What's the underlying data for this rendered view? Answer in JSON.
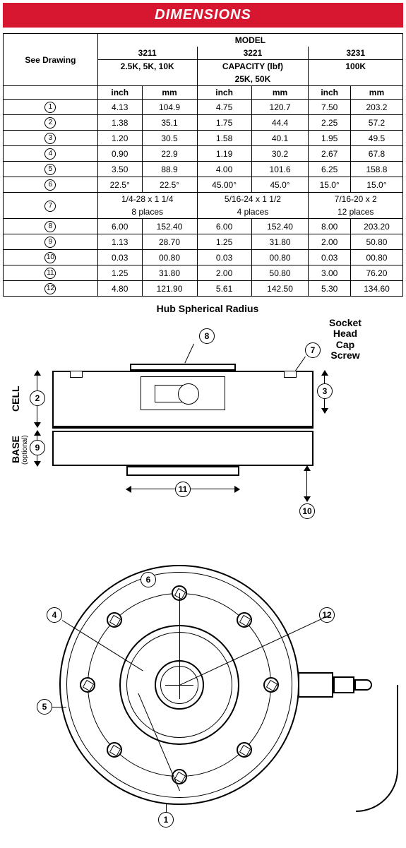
{
  "title": "DIMENSIONS",
  "colors": {
    "header_bg": "#d7172f",
    "header_fg": "#ffffff",
    "border": "#000000"
  },
  "headers": {
    "see_drawing": "See Drawing",
    "model": "MODEL",
    "models": [
      "3211",
      "3221",
      "3231"
    ],
    "capacity_label": "CAPACITY (lbf)",
    "capacities": [
      "2.5K, 5K, 10K",
      "25K, 50K",
      "100K"
    ],
    "unit_inch": "inch",
    "unit_mm": "mm"
  },
  "rows": [
    {
      "n": "1",
      "v": [
        "4.13",
        "104.9",
        "4.75",
        "120.7",
        "7.50",
        "203.2"
      ]
    },
    {
      "n": "2",
      "v": [
        "1.38",
        "35.1",
        "1.75",
        "44.4",
        "2.25",
        "57.2"
      ]
    },
    {
      "n": "3",
      "v": [
        "1.20",
        "30.5",
        "1.58",
        "40.1",
        "1.95",
        "49.5"
      ]
    },
    {
      "n": "4",
      "v": [
        "0.90",
        "22.9",
        "1.19",
        "30.2",
        "2.67",
        "67.8"
      ]
    },
    {
      "n": "5",
      "v": [
        "3.50",
        "88.9",
        "4.00",
        "101.6",
        "6.25",
        "158.8"
      ]
    },
    {
      "n": "6",
      "v": [
        "22.5°",
        "22.5°",
        "45.00°",
        "45.0°",
        "15.0°",
        "15.0°"
      ]
    }
  ],
  "row7": {
    "n": "7",
    "top": [
      "1/4-28 x 1 1/4",
      "5/16-24 x 1 1/2",
      "7/16-20 x 2"
    ],
    "bot": [
      "8 places",
      "4 places",
      "12 places"
    ]
  },
  "rows2": [
    {
      "n": "8",
      "v": [
        "6.00",
        "152.40",
        "6.00",
        "152.40",
        "8.00",
        "203.20"
      ]
    },
    {
      "n": "9",
      "v": [
        "1.13",
        "28.70",
        "1.25",
        "31.80",
        "2.00",
        "50.80"
      ]
    },
    {
      "n": "10",
      "v": [
        "0.03",
        "00.80",
        "0.03",
        "00.80",
        "0.03",
        "00.80"
      ]
    },
    {
      "n": "11",
      "v": [
        "1.25",
        "31.80",
        "2.00",
        "50.80",
        "3.00",
        "76.20"
      ]
    },
    {
      "n": "12",
      "v": [
        "4.80",
        "121.90",
        "5.61",
        "142.50",
        "5.30",
        "134.60"
      ]
    }
  ],
  "diagram": {
    "hub_label": "Hub Spherical Radius",
    "socket_label_l1": "Socket",
    "socket_label_l2": "Head",
    "socket_label_l3": "Cap",
    "socket_label_l4": "Screw",
    "cell_label": "CELL",
    "base_label": "BASE",
    "optional_label": "(optional)",
    "callouts": {
      "c1": "1",
      "c2": "2",
      "c3": "3",
      "c4": "4",
      "c5": "5",
      "c6": "6",
      "c7": "7",
      "c8": "8",
      "c9": "9",
      "c10": "10",
      "c11": "11",
      "c12": "12"
    }
  }
}
